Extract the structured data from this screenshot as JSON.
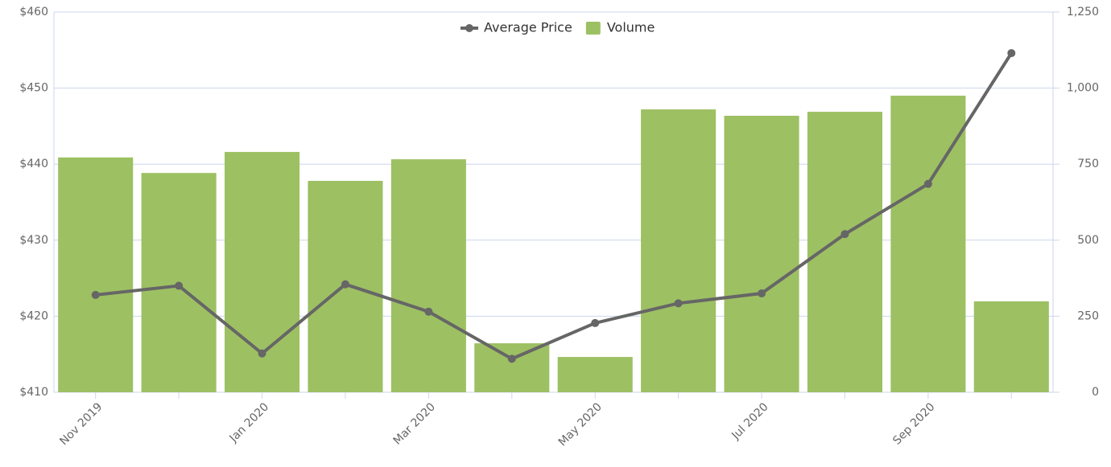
{
  "chart_data": {
    "type": "bar-line",
    "categories": [
      "Nov 2019",
      null,
      "Jan 2020",
      null,
      "Mar 2020",
      null,
      "May 2020",
      null,
      "Jul 2020",
      null,
      "Sep 2020",
      null
    ],
    "series": [
      {
        "name": "Average Price",
        "type": "line",
        "color": "#666666",
        "axis": "y",
        "values": [
          422.8,
          424.0,
          415.1,
          424.2,
          420.6,
          414.4,
          419.1,
          421.7,
          423.0,
          430.8,
          437.4,
          454.6
        ]
      },
      {
        "name": "Volume",
        "type": "bar",
        "color": "#9dc063",
        "axis": "y2",
        "values": [
          772,
          721,
          790,
          695,
          766,
          161,
          116,
          930,
          909,
          922,
          975,
          299
        ]
      }
    ],
    "ylim": [
      410,
      460
    ],
    "yticks": [
      {
        "value": 410,
        "label": "$410"
      },
      {
        "value": 420,
        "label": "$420"
      },
      {
        "value": 430,
        "label": "$430"
      },
      {
        "value": 440,
        "label": "$440"
      },
      {
        "value": 450,
        "label": "$450"
      },
      {
        "value": 460,
        "label": "$460"
      }
    ],
    "y2lim": [
      0,
      1250
    ],
    "y2ticks": [
      0,
      250,
      500,
      750,
      {
        "value": 1000,
        "label": "1,000"
      },
      {
        "value": 1250,
        "label": "1,250"
      }
    ],
    "grid": true,
    "legend": "top"
  }
}
